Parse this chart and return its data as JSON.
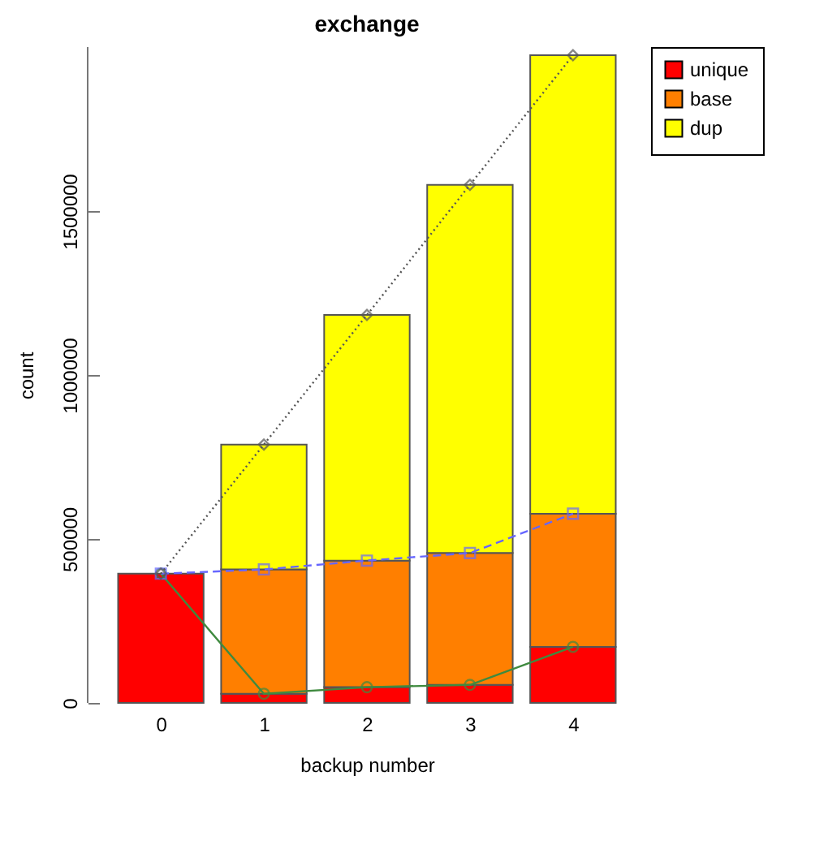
{
  "chart_data": {
    "type": "bar",
    "title": "exchange",
    "xlabel": "backup number",
    "ylabel": "count",
    "categories": [
      "0",
      "1",
      "2",
      "3",
      "4"
    ],
    "stacked": true,
    "series": [
      {
        "name": "unique",
        "color": "#ff0000",
        "values": [
          394000,
          28000,
          48000,
          55000,
          171000
        ]
      },
      {
        "name": "base",
        "color": "#ff7f00",
        "values": [
          0,
          379000,
          386000,
          402000,
          406000
        ]
      },
      {
        "name": "dup",
        "color": "#ffff00",
        "values": [
          0,
          381000,
          749000,
          1123000,
          1398000
        ]
      },
      {
        "type": "line",
        "color": "#3f8a3f",
        "marker": "circle",
        "line_style": "solid",
        "values": [
          394000,
          28000,
          48000,
          55000,
          171000
        ]
      },
      {
        "type": "line",
        "color": "#6666ff",
        "marker": "square",
        "line_style": "dashed",
        "values": [
          394000,
          407000,
          434000,
          457000,
          577000
        ]
      },
      {
        "type": "line",
        "color": "#555555",
        "marker": "diamond",
        "line_style": "dotted",
        "values": [
          394000,
          788000,
          1183000,
          1580000,
          1975000
        ]
      }
    ],
    "ylim": [
      0,
      2000000
    ],
    "yticks": [
      0,
      500000,
      1000000,
      1500000
    ],
    "grid": false,
    "legend": "top right"
  }
}
